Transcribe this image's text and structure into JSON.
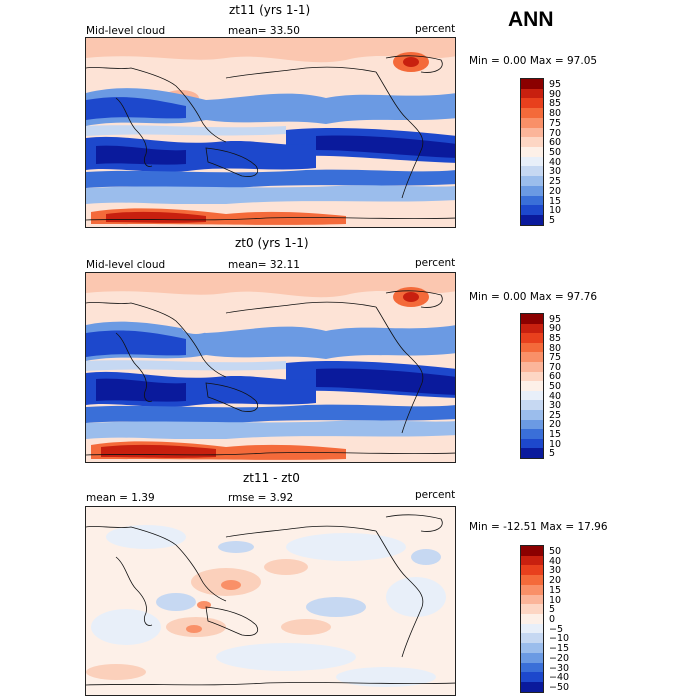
{
  "season": "ANN",
  "panels": [
    {
      "title": "zt11 (yrs 1-1)",
      "left_label": "Mid-level cloud",
      "center_label": "mean=  33.50",
      "units": "percent",
      "minmax": "Min =   0.00 Max =  97.05",
      "legend": [
        "95",
        "90",
        "85",
        "80",
        "75",
        "70",
        "60",
        "50",
        "40",
        "30",
        "25",
        "20",
        "15",
        "10",
        "5"
      ],
      "colors": [
        "#8b0000",
        "#c8200f",
        "#e8401d",
        "#f46a3a",
        "#f99068",
        "#fbb59a",
        "#fdd6c4",
        "#fdf0e8",
        "#e8eff9",
        "#c6d8f2",
        "#9bbdec",
        "#6b9ae3",
        "#3a6fd8",
        "#1d48cc",
        "#0a1a9c"
      ]
    },
    {
      "title": "zt0 (yrs 1-1)",
      "left_label": "Mid-level cloud",
      "center_label": "mean=  32.11",
      "units": "percent",
      "minmax": "Min =   0.00 Max =  97.76",
      "legend": [
        "95",
        "90",
        "85",
        "80",
        "75",
        "70",
        "60",
        "50",
        "40",
        "30",
        "25",
        "20",
        "15",
        "10",
        "5"
      ],
      "colors": [
        "#8b0000",
        "#c8200f",
        "#e8401d",
        "#f46a3a",
        "#f99068",
        "#fbb59a",
        "#fdd6c4",
        "#fdf0e8",
        "#e8eff9",
        "#c6d8f2",
        "#9bbdec",
        "#6b9ae3",
        "#3a6fd8",
        "#1d48cc",
        "#0a1a9c"
      ]
    },
    {
      "title": "zt11 - zt0",
      "left_label": "mean =   1.39",
      "center_label": "rmse =   3.92",
      "units": "percent",
      "minmax": "Min = -12.51 Max =  17.96",
      "legend": [
        "50",
        "40",
        "30",
        "20",
        "15",
        "10",
        "5",
        "0",
        "−5",
        "−10",
        "−15",
        "−20",
        "−30",
        "−40",
        "−50"
      ],
      "colors": [
        "#8b0000",
        "#c8200f",
        "#e8401d",
        "#f46a3a",
        "#f99068",
        "#fbb59a",
        "#fdd6c4",
        "#fdf0e8",
        "#e8eff9",
        "#c6d8f2",
        "#9bbdec",
        "#6b9ae3",
        "#3a6fd8",
        "#1d48cc",
        "#0a1a9c"
      ]
    }
  ]
}
